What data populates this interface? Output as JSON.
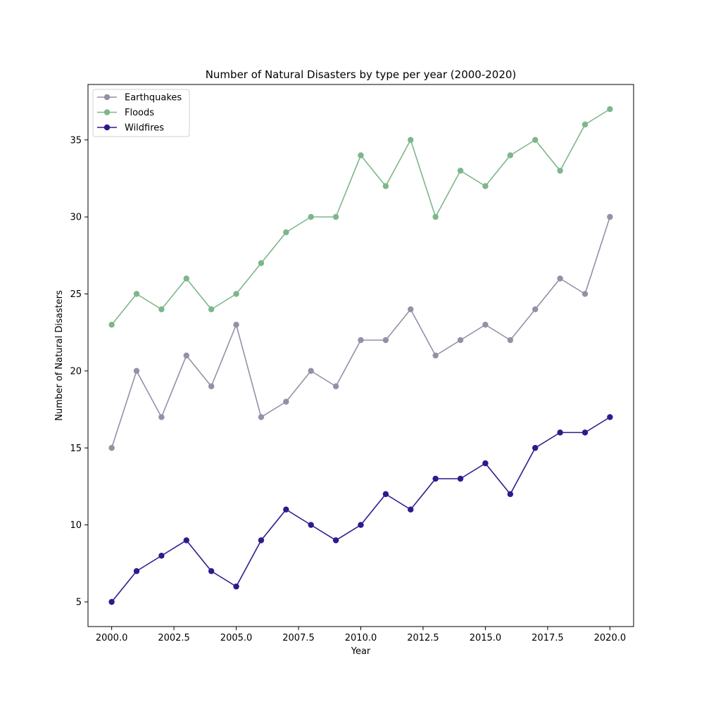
{
  "chart_data": {
    "type": "line",
    "title": "Number of Natural Disasters by type per year (2000-2020)",
    "xlabel": "Year",
    "ylabel": "Number of Natural Disasters",
    "x": [
      2000,
      2001,
      2002,
      2003,
      2004,
      2005,
      2006,
      2007,
      2008,
      2009,
      2010,
      2011,
      2012,
      2013,
      2014,
      2015,
      2016,
      2017,
      2018,
      2019,
      2020
    ],
    "xlim": [
      1999.05,
      2020.95
    ],
    "ylim": [
      3.4,
      38.6
    ],
    "xticks": [
      2000,
      2002.5,
      2005,
      2007.5,
      2010,
      2012.5,
      2015,
      2017.5,
      2020
    ],
    "xtick_labels": [
      "2000.0",
      "2002.5",
      "2005.0",
      "2007.5",
      "2010.0",
      "2012.5",
      "2015.0",
      "2017.5",
      "2020.0"
    ],
    "yticks": [
      5,
      10,
      15,
      20,
      25,
      30,
      35
    ],
    "ytick_labels": [
      "5",
      "10",
      "15",
      "20",
      "25",
      "30",
      "35"
    ],
    "grid": false,
    "legend_position": "top-left",
    "series": [
      {
        "name": "Earthquakes",
        "color": "#9490a8",
        "values": [
          15,
          20,
          17,
          21,
          19,
          23,
          17,
          18,
          20,
          19,
          22,
          22,
          24,
          21,
          22,
          23,
          22,
          24,
          26,
          25,
          30
        ]
      },
      {
        "name": "Floods",
        "color": "#7db68a",
        "values": [
          23,
          25,
          24,
          26,
          24,
          25,
          27,
          29,
          30,
          30,
          34,
          32,
          35,
          30,
          33,
          32,
          34,
          35,
          33,
          36,
          37
        ]
      },
      {
        "name": "Wildfires",
        "color": "#2d1b8c",
        "values": [
          5,
          7,
          8,
          9,
          7,
          6,
          9,
          11,
          10,
          9,
          10,
          12,
          11,
          13,
          13,
          14,
          12,
          15,
          16,
          16,
          17
        ]
      }
    ]
  }
}
